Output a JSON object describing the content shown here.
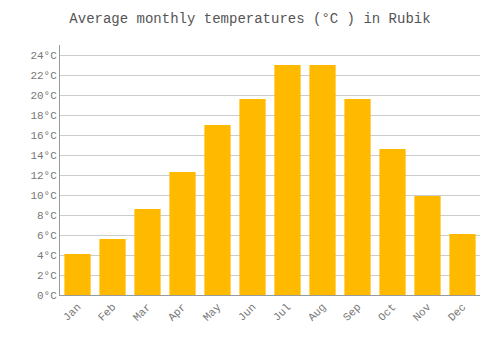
{
  "chart_data": {
    "type": "bar",
    "title": "Average monthly temperatures (°C ) in Rubik",
    "categories": [
      "Jan",
      "Feb",
      "Mar",
      "Apr",
      "May",
      "Jun",
      "Jul",
      "Aug",
      "Sep",
      "Oct",
      "Nov",
      "Dec"
    ],
    "values": [
      4.1,
      5.6,
      8.6,
      12.3,
      17.0,
      19.6,
      23.0,
      23.0,
      19.6,
      14.6,
      9.9,
      6.1
    ],
    "color": "#FFBA00",
    "ylim": [
      0,
      25
    ],
    "yticks": [
      {
        "value": 0,
        "label": "0°C"
      },
      {
        "value": 2,
        "label": "2°C"
      },
      {
        "value": 4,
        "label": "4°C"
      },
      {
        "value": 6,
        "label": "6°C"
      },
      {
        "value": 8,
        "label": "8°C"
      },
      {
        "value": 10,
        "label": "10°C"
      },
      {
        "value": 12,
        "label": "12°C"
      },
      {
        "value": 14,
        "label": "14°C"
      },
      {
        "value": 16,
        "label": "16°C"
      },
      {
        "value": 18,
        "label": "18°C"
      },
      {
        "value": 20,
        "label": "20°C"
      },
      {
        "value": 22,
        "label": "22°C"
      },
      {
        "value": 24,
        "label": "24°C"
      }
    ],
    "grid": true
  }
}
